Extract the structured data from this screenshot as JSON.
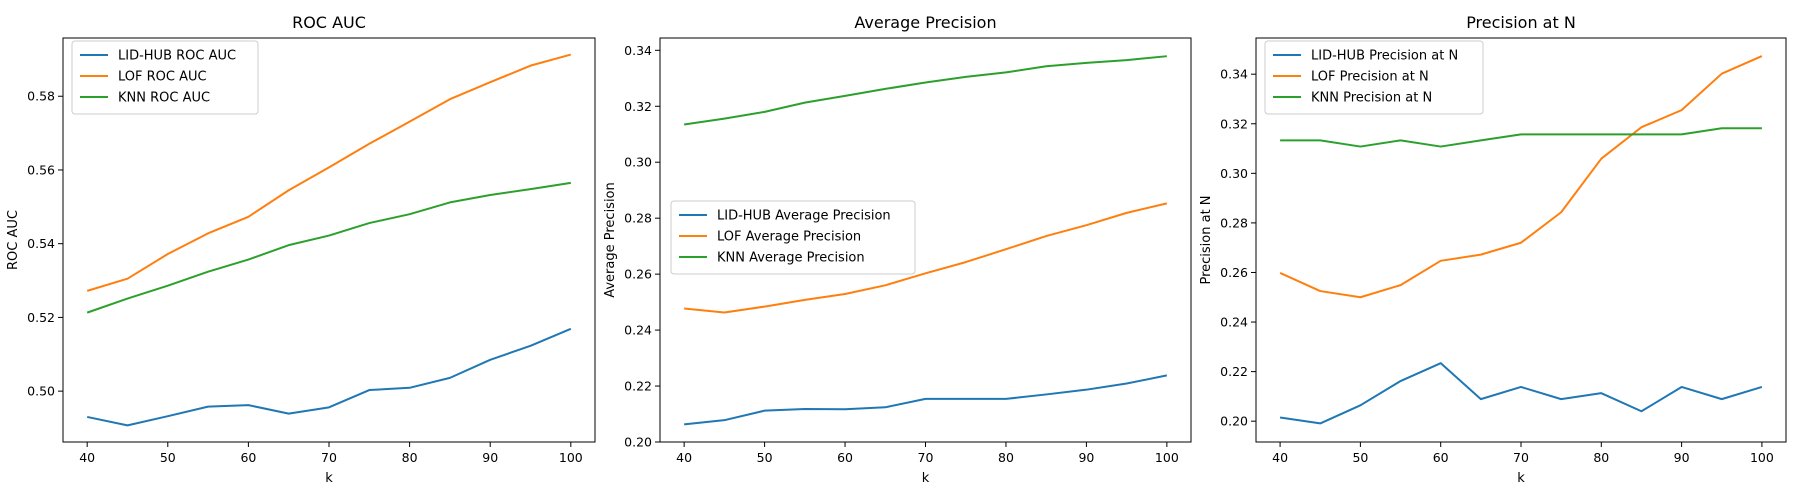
{
  "chart_data": [
    {
      "type": "line",
      "title": "ROC AUC",
      "xlabel": "k",
      "ylabel": "ROC AUC",
      "x": [
        40,
        45,
        50,
        55,
        60,
        65,
        70,
        75,
        80,
        85,
        90,
        95,
        100
      ],
      "xticks": [
        40,
        50,
        60,
        70,
        80,
        90,
        100
      ],
      "xlim": [
        37,
        103
      ],
      "yticks": [
        0.5,
        0.52,
        0.54,
        0.56,
        0.58
      ],
      "ytick_labels": [
        "0.50",
        "0.52",
        "0.54",
        "0.56",
        "0.58"
      ],
      "ylim": [
        0.4862,
        0.5958
      ],
      "legend": {
        "placement": "upper-left"
      },
      "series": [
        {
          "name": "LID-HUB ROC AUC",
          "color": "#1f77b4",
          "values": [
            0.493,
            0.4907,
            0.4932,
            0.4958,
            0.4962,
            0.4939,
            0.4956,
            0.5003,
            0.5009,
            0.5036,
            0.5085,
            0.5123,
            0.5169
          ]
        },
        {
          "name": "LOF ROC AUC",
          "color": "#ff7f0e",
          "values": [
            0.5272,
            0.5305,
            0.5372,
            0.5428,
            0.5473,
            0.5545,
            0.5607,
            0.5671,
            0.5731,
            0.5792,
            0.5838,
            0.5883,
            0.5913
          ]
        },
        {
          "name": "KNN ROC AUC",
          "color": "#2ca02c",
          "values": [
            0.5213,
            0.5251,
            0.5286,
            0.5324,
            0.5357,
            0.5396,
            0.5422,
            0.5456,
            0.548,
            0.5512,
            0.5532,
            0.5548,
            0.5565
          ]
        }
      ]
    },
    {
      "type": "line",
      "title": "Average Precision",
      "xlabel": "k",
      "ylabel": "Average Precision",
      "x": [
        40,
        45,
        50,
        55,
        60,
        65,
        70,
        75,
        80,
        85,
        90,
        95,
        100
      ],
      "xticks": [
        40,
        50,
        60,
        70,
        80,
        90,
        100
      ],
      "xlim": [
        37,
        103
      ],
      "yticks": [
        0.2,
        0.22,
        0.24,
        0.26,
        0.28,
        0.3,
        0.32,
        0.34
      ],
      "ytick_labels": [
        "0.20",
        "0.22",
        "0.24",
        "0.26",
        "0.28",
        "0.30",
        "0.32",
        "0.34"
      ],
      "ylim": [
        0.2,
        0.3444
      ],
      "legend": {
        "placement": "center-left"
      },
      "series": [
        {
          "name": "LID-HUB Average Precision",
          "color": "#1f77b4",
          "values": [
            0.2063,
            0.2078,
            0.2112,
            0.2118,
            0.2117,
            0.2124,
            0.2154,
            0.2154,
            0.2154,
            0.217,
            0.2187,
            0.2209,
            0.2238
          ]
        },
        {
          "name": "LOF Average Precision",
          "color": "#ff7f0e",
          "values": [
            0.2477,
            0.2463,
            0.2484,
            0.2508,
            0.2529,
            0.256,
            0.2603,
            0.2643,
            0.2689,
            0.2736,
            0.2775,
            0.2819,
            0.2853
          ]
        },
        {
          "name": "KNN Average Precision",
          "color": "#2ca02c",
          "values": [
            0.3135,
            0.3156,
            0.318,
            0.3213,
            0.3237,
            0.3262,
            0.3285,
            0.3305,
            0.3321,
            0.3343,
            0.3355,
            0.3365,
            0.3379
          ]
        }
      ]
    },
    {
      "type": "line",
      "title": "Precision at N",
      "xlabel": "k",
      "ylabel": "Precision at N",
      "x": [
        40,
        45,
        50,
        55,
        60,
        65,
        70,
        75,
        80,
        85,
        90,
        95,
        100
      ],
      "xticks": [
        40,
        50,
        60,
        70,
        80,
        90,
        100
      ],
      "xlim": [
        37,
        103
      ],
      "yticks": [
        0.2,
        0.22,
        0.24,
        0.26,
        0.28,
        0.3,
        0.32,
        0.34
      ],
      "ytick_labels": [
        "0.20",
        "0.22",
        "0.24",
        "0.26",
        "0.28",
        "0.30",
        "0.32",
        "0.34"
      ],
      "ylim": [
        0.1916,
        0.3546
      ],
      "legend": {
        "placement": "upper-left"
      },
      "series": [
        {
          "name": "LID-HUB Precision at N",
          "color": "#1f77b4",
          "values": [
            0.2015,
            0.1991,
            0.2064,
            0.2162,
            0.2234,
            0.2089,
            0.2138,
            0.2089,
            0.2113,
            0.204,
            0.2138,
            0.2089,
            0.2138
          ]
        },
        {
          "name": "LOF Precision at N",
          "color": "#ff7f0e",
          "values": [
            0.2598,
            0.2525,
            0.25,
            0.2549,
            0.2647,
            0.2672,
            0.272,
            0.2843,
            0.3059,
            0.3186,
            0.3255,
            0.3402,
            0.3473
          ]
        },
        {
          "name": "KNN Precision at N",
          "color": "#2ca02c",
          "values": [
            0.3133,
            0.3133,
            0.3108,
            0.3133,
            0.3108,
            0.3133,
            0.3157,
            0.3157,
            0.3157,
            0.3157,
            0.3157,
            0.3182,
            0.3182
          ]
        }
      ]
    }
  ]
}
